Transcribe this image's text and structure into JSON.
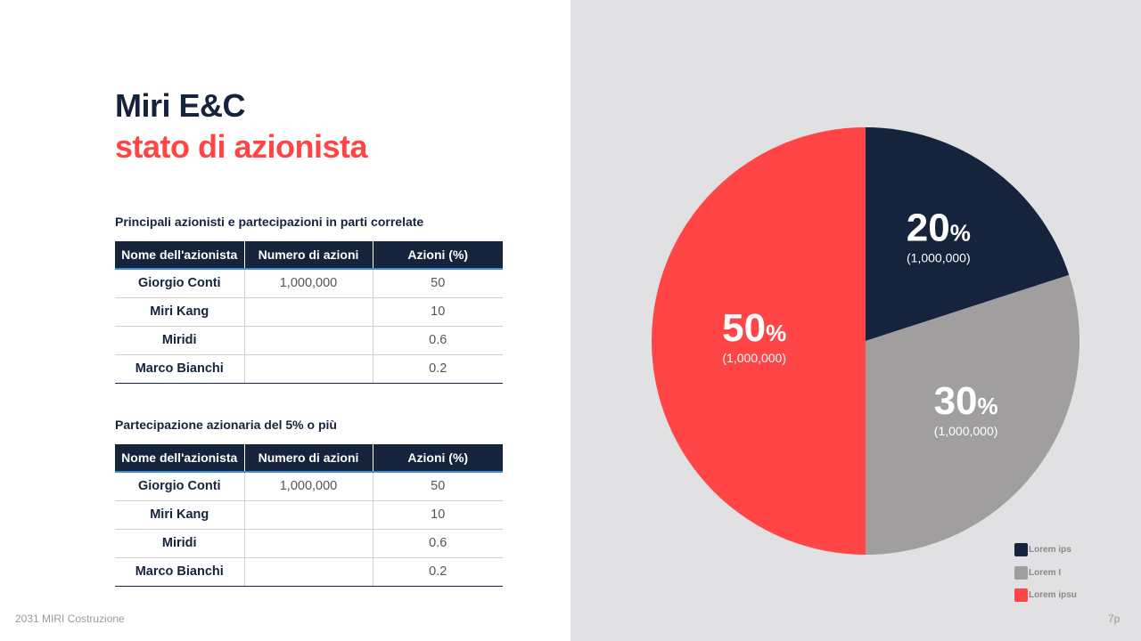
{
  "title_line1": "Miri E&C",
  "title_line2": "stato di azionista",
  "table1": {
    "caption": "Principali azionisti e partecipazioni in parti correlate",
    "headers": [
      "Nome dell'azionista",
      "Numero di azioni",
      "Azioni (%)"
    ],
    "rows": [
      [
        "Giorgio Conti",
        "1,000,000",
        "50"
      ],
      [
        "Miri Kang",
        "",
        "10"
      ],
      [
        "Miridi",
        "",
        "0.6"
      ],
      [
        "Marco Bianchi",
        "",
        "0.2"
      ]
    ]
  },
  "table2": {
    "caption": "Partecipazione azionaria del 5% o più",
    "headers": [
      "Nome dell'azionista",
      "Numero di azioni",
      "Azioni (%)"
    ],
    "rows": [
      [
        "Giorgio Conti",
        "1,000,000",
        "50"
      ],
      [
        "Miri Kang",
        "",
        "10"
      ],
      [
        "Miridi",
        "",
        "0.6"
      ],
      [
        "Marco Bianchi",
        "",
        "0.2"
      ]
    ]
  },
  "footer": {
    "left": "2031 MIRI Costruzione",
    "right": "7p"
  },
  "chart_data": {
    "type": "pie",
    "title": "",
    "slices": [
      {
        "label": "Lorem ips",
        "value": 20,
        "percent_text": "20",
        "percent_sign": "%",
        "sublabel": "(1,000,000)",
        "color": "#16233d"
      },
      {
        "label": "Lorem I",
        "value": 30,
        "percent_text": "30",
        "percent_sign": "%",
        "sublabel": "(1,000,000)",
        "color": "#a09e9f"
      },
      {
        "label": "Lorem ipsu",
        "value": 50,
        "percent_text": "50",
        "percent_sign": "%",
        "sublabel": "(1,000,000)",
        "color": "#ff4545"
      }
    ],
    "legend_position": "bottom-right"
  },
  "colors": {
    "navy": "#16233d",
    "red": "#ff4545",
    "gray": "#a09e9f",
    "panel_bg": "#e1e0e2"
  }
}
